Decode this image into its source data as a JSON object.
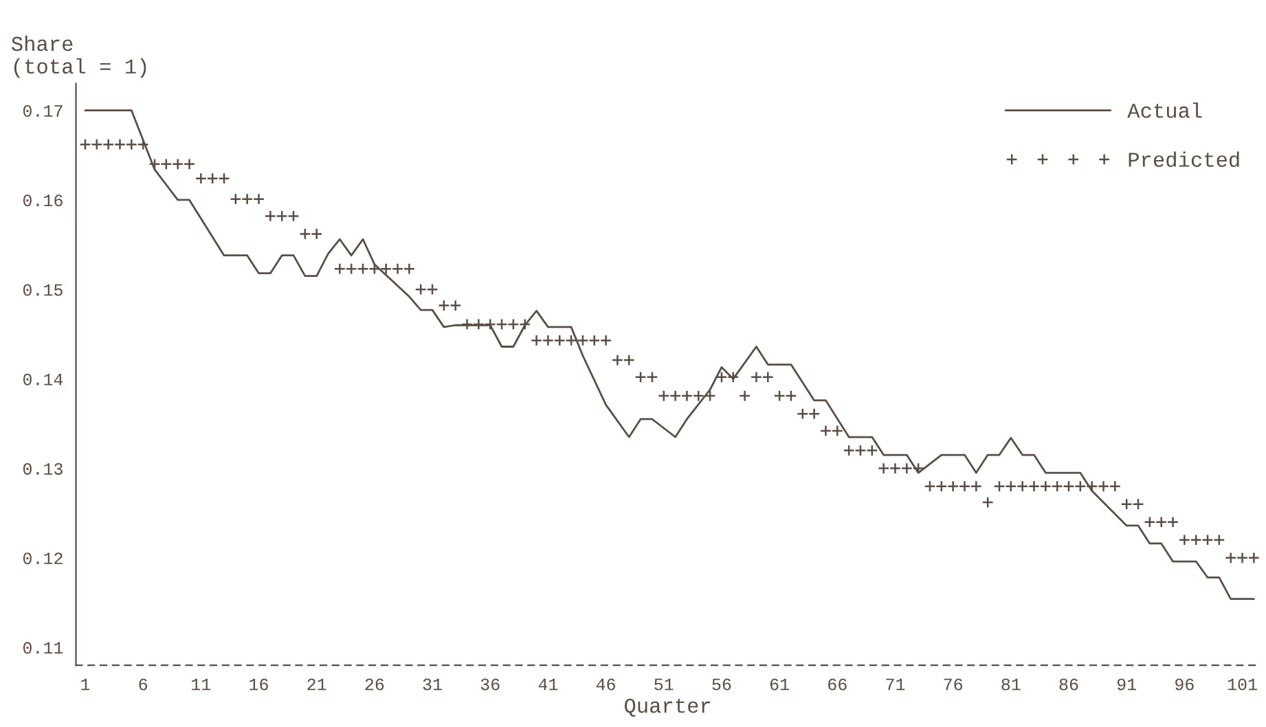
{
  "chart_data": {
    "type": "line",
    "xlabel": "Quarter",
    "ylabel": "Share\n(total = 1)",
    "xlim": [
      0.2,
      102.5
    ],
    "xticks": [
      1,
      6,
      11,
      16,
      21,
      26,
      31,
      36,
      41,
      46,
      51,
      56,
      61,
      66,
      71,
      76,
      81,
      86,
      91,
      96,
      101
    ],
    "ylim": [
      0.108,
      0.173
    ],
    "yticks": [
      0.11,
      0.12,
      0.13,
      0.14,
      0.15,
      0.16,
      0.17
    ],
    "grid": false,
    "legend": "top right",
    "series": [
      {
        "name": "Actual",
        "color": "#5b4c44",
        "line_style": "solid",
        "marker": "none",
        "x": [
          1,
          5,
          7,
          9,
          10,
          13,
          15,
          16,
          17,
          18,
          19,
          20,
          21,
          22,
          23,
          24,
          25,
          26,
          29,
          30,
          31,
          32,
          33,
          36,
          37,
          38,
          39,
          40,
          41,
          43,
          44,
          46,
          48,
          49,
          50,
          52,
          53,
          55,
          56,
          57,
          59,
          60,
          62,
          64,
          65,
          67,
          69,
          70,
          72,
          73,
          75,
          77,
          78,
          79,
          80,
          81,
          82,
          83,
          84,
          87,
          88,
          91,
          92,
          93,
          94,
          95,
          97,
          98,
          99,
          100,
          102
        ],
        "values": [
          0.17,
          0.17,
          0.1634,
          0.16,
          0.16,
          0.1538,
          0.1538,
          0.1518,
          0.1518,
          0.1538,
          0.1538,
          0.1515,
          0.1515,
          0.154,
          0.1556,
          0.1538,
          0.1556,
          0.1528,
          0.1492,
          0.1477,
          0.1477,
          0.1458,
          0.146,
          0.146,
          0.1436,
          0.1436,
          0.146,
          0.1476,
          0.1458,
          0.1458,
          0.1426,
          0.1371,
          0.1335,
          0.1355,
          0.1355,
          0.1335,
          0.1355,
          0.1388,
          0.1413,
          0.14,
          0.1436,
          0.1416,
          0.1416,
          0.1376,
          0.1376,
          0.1335,
          0.1335,
          0.1315,
          0.1315,
          0.1295,
          0.1315,
          0.1315,
          0.1295,
          0.1315,
          0.1315,
          0.1334,
          0.1315,
          0.1315,
          0.1295,
          0.1295,
          0.1275,
          0.1236,
          0.1236,
          0.1216,
          0.1216,
          0.1196,
          0.1196,
          0.1178,
          0.1178,
          0.1154,
          0.1154
        ]
      },
      {
        "name": "Predicted",
        "type": "scatter",
        "color": "#5b4c44",
        "marker": "cross",
        "x": [
          1,
          2,
          3,
          4,
          5,
          6,
          7,
          8,
          9,
          10,
          11,
          12,
          13,
          14,
          15,
          16,
          17,
          18,
          19,
          20,
          21,
          22,
          23,
          24,
          25,
          26,
          27,
          28,
          29,
          30,
          31,
          32,
          33,
          34,
          35,
          36,
          37,
          38,
          39,
          40,
          41,
          42,
          43,
          44,
          45,
          46,
          47,
          48,
          49,
          50,
          51,
          52,
          53,
          54,
          55,
          56,
          57,
          58,
          59,
          60,
          61,
          62,
          63,
          64,
          65,
          66,
          67,
          68,
          69,
          70,
          71,
          72,
          73,
          74,
          75,
          76,
          77,
          78,
          79,
          80,
          81,
          82,
          83,
          84,
          85,
          86,
          87,
          88,
          89,
          90,
          91,
          92,
          93,
          94,
          95,
          96,
          97,
          98,
          99,
          100,
          101,
          102
        ],
        "values": [
          0.1662,
          0.1662,
          0.1662,
          0.1662,
          0.1662,
          0.1662,
          0.164,
          0.164,
          0.164,
          0.164,
          0.1624,
          0.1624,
          0.1624,
          0.1601,
          0.1601,
          0.1601,
          0.1582,
          0.1582,
          0.1582,
          0.1562,
          0.1562,
          null,
          0.1523,
          0.1523,
          0.1523,
          0.1523,
          0.1523,
          0.1523,
          0.1523,
          0.15,
          0.15,
          0.1482,
          0.1482,
          0.1461,
          0.1461,
          0.1461,
          0.1461,
          0.1461,
          0.1461,
          0.1443,
          0.1443,
          0.1443,
          0.1443,
          0.1443,
          0.1443,
          0.1443,
          0.1421,
          0.1421,
          0.1402,
          0.1402,
          0.1381,
          0.1381,
          0.1381,
          0.1381,
          0.1381,
          0.1402,
          0.1402,
          0.1381,
          0.1402,
          0.1402,
          0.1381,
          0.1381,
          0.1361,
          0.1361,
          0.1342,
          0.1342,
          0.132,
          0.132,
          0.132,
          0.13,
          0.13,
          0.13,
          0.13,
          0.128,
          0.128,
          0.128,
          0.128,
          0.128,
          0.1262,
          0.128,
          0.128,
          0.128,
          0.128,
          0.128,
          0.128,
          0.128,
          0.128,
          0.128,
          0.128,
          0.128,
          0.126,
          0.126,
          0.124,
          0.124,
          0.124,
          0.122,
          0.122,
          0.122,
          0.122,
          0.12,
          0.12,
          0.12
        ]
      }
    ]
  }
}
